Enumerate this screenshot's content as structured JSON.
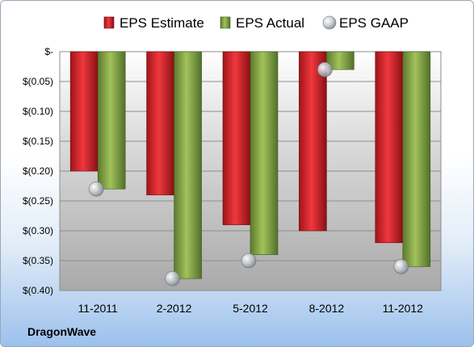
{
  "company": "DragonWave",
  "chart_data": {
    "type": "bar",
    "categories": [
      "11-2011",
      "2-2012",
      "5-2012",
      "8-2012",
      "11-2012"
    ],
    "series": [
      {
        "name": "EPS Estimate",
        "values": [
          -0.2,
          -0.24,
          -0.29,
          -0.3,
          -0.32
        ],
        "color": "#e01d23"
      },
      {
        "name": "EPS Actual",
        "values": [
          -0.23,
          -0.38,
          -0.34,
          -0.03,
          -0.36
        ],
        "color": "#84a844"
      },
      {
        "name": "EPS GAAP",
        "values": [
          -0.23,
          -0.38,
          -0.35,
          -0.03,
          -0.36
        ],
        "color": "#b8c0c8",
        "marker": "sphere"
      }
    ],
    "yticks": [
      0,
      -0.05,
      -0.1,
      -0.15,
      -0.2,
      -0.25,
      -0.3,
      -0.35,
      -0.4
    ],
    "ytick_labels": [
      "$-",
      "$(0.05)",
      "$(0.10)",
      "$(0.15)",
      "$(0.20)",
      "$(0.25)",
      "$(0.30)",
      "$(0.35)",
      "$(0.40)"
    ],
    "ylim": [
      -0.4,
      0
    ],
    "grid": true,
    "legend": "top"
  }
}
